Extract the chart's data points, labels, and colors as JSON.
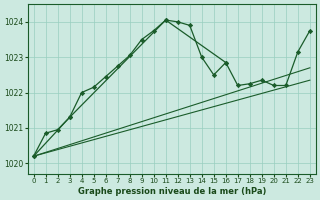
{
  "title": "Graphe pression niveau de la mer (hPa)",
  "xlabel_ticks": [
    0,
    1,
    2,
    3,
    4,
    5,
    6,
    7,
    8,
    9,
    10,
    11,
    12,
    13,
    14,
    15,
    16,
    17,
    18,
    19,
    20,
    21,
    22,
    23
  ],
  "yticks": [
    1020,
    1021,
    1022,
    1023,
    1024
  ],
  "ylim": [
    1019.7,
    1024.5
  ],
  "xlim": [
    -0.5,
    23.5
  ],
  "bg_color": "#cce9e0",
  "grid_color": "#99cfc0",
  "line_color": "#1a5c2a",
  "text_color": "#1a4a1a",
  "series0_x": [
    0,
    1,
    2,
    3,
    4,
    5,
    6,
    7,
    8,
    9,
    10,
    11,
    12,
    13,
    14,
    15,
    16
  ],
  "series0_y": [
    1020.2,
    1020.85,
    1020.95,
    1021.3,
    1022.0,
    1022.15,
    1022.45,
    1022.75,
    1023.05,
    1023.5,
    1023.75,
    1024.05,
    1024.0,
    1023.9,
    1023.0,
    1022.5,
    1022.85
  ],
  "series1_x": [
    0,
    3,
    11,
    16,
    17,
    18,
    19,
    20,
    21,
    22,
    23
  ],
  "series1_y": [
    1020.2,
    1021.3,
    1024.05,
    1022.85,
    1022.2,
    1022.25,
    1022.35,
    1022.2,
    1022.2,
    1023.15,
    1023.75
  ],
  "line2_x": [
    0,
    23
  ],
  "line2_y": [
    1020.2,
    1022.35
  ],
  "line3_x": [
    0,
    23
  ],
  "line3_y": [
    1020.2,
    1022.7
  ]
}
